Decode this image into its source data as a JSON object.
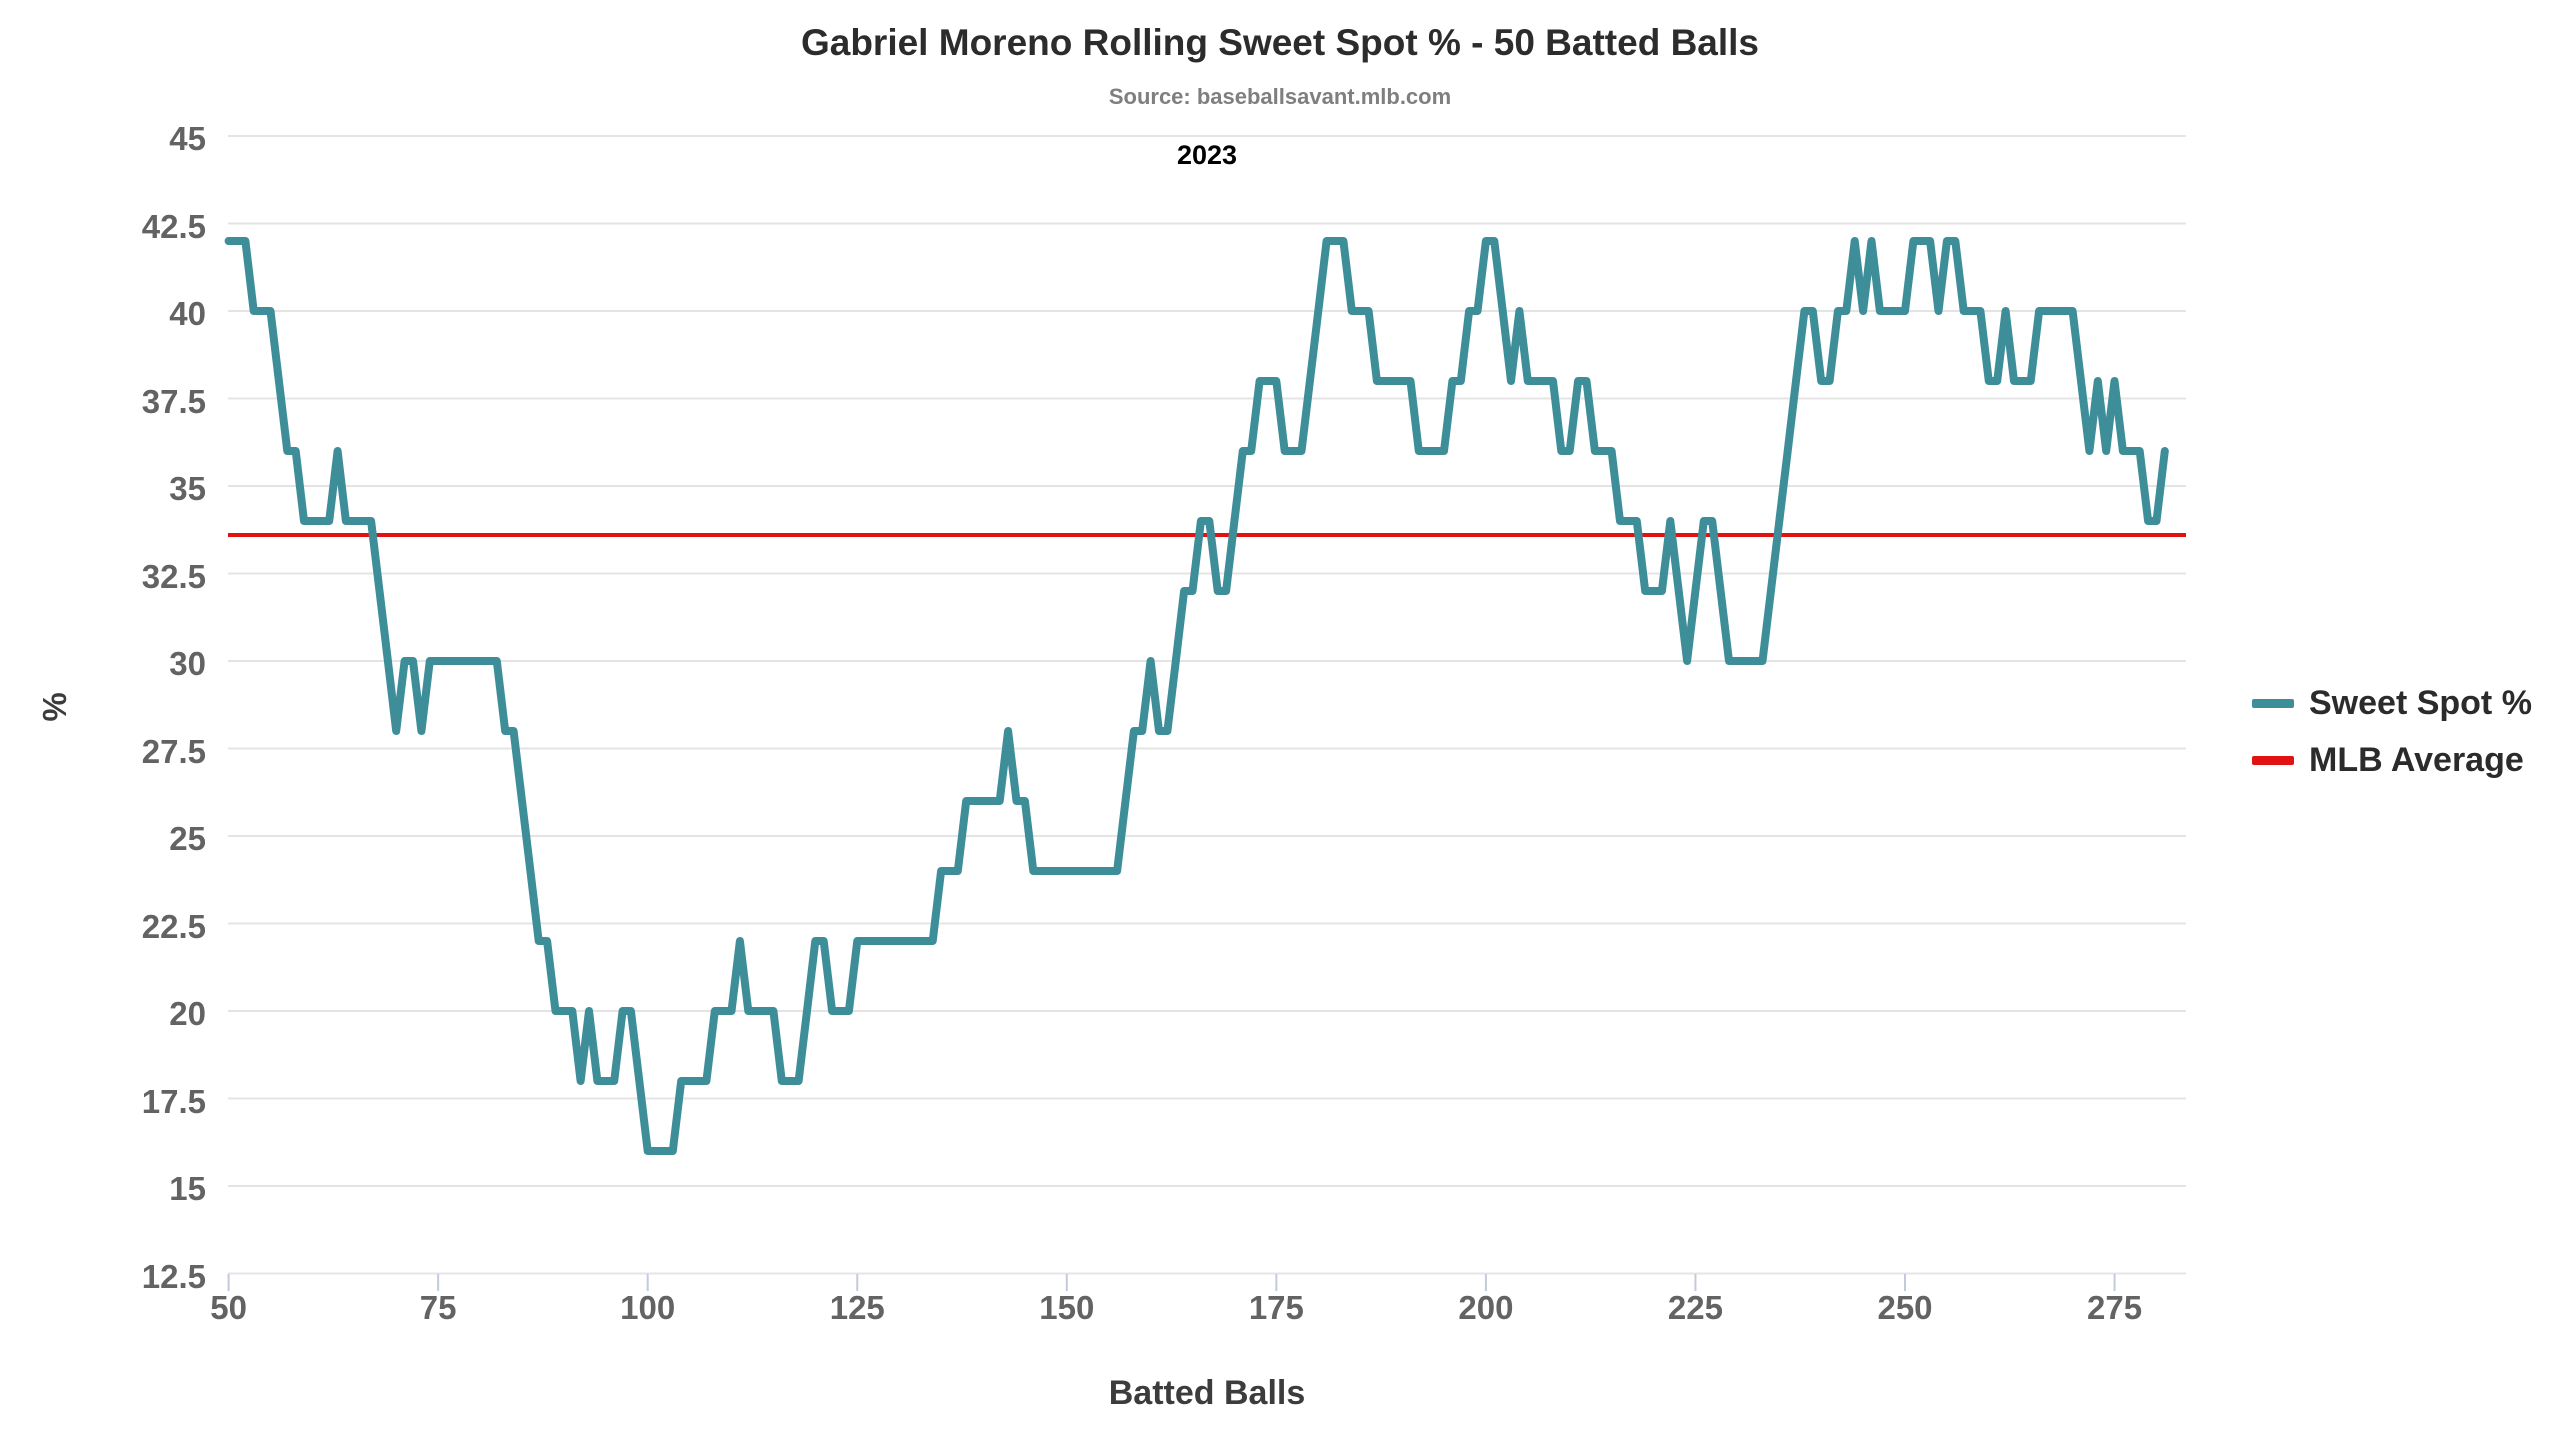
{
  "title": "Gabriel Moreno Rolling Sweet Spot % - 50 Batted Balls",
  "subtitle": "Source: baseballsavant.mlb.com",
  "annotation": "2023",
  "x_axis": {
    "label": "Batted Balls"
  },
  "y_axis": {
    "label": "%"
  },
  "legend": [
    {
      "label": "Sweet Spot %",
      "color": "#3e8e99"
    },
    {
      "label": "MLB Average",
      "color": "#e01212"
    }
  ],
  "colors": {
    "line": "#3e8e99",
    "average": "#e01212",
    "gridline": "#e4e4e4",
    "tick_mark": "#c2cbdd",
    "tick_text": "#636363"
  },
  "chart_data": {
    "type": "line",
    "title": "Gabriel Moreno Rolling Sweet Spot % - 50 Batted Balls",
    "subtitle": "Source: baseballsavant.mlb.com",
    "annotation": "2023",
    "xlabel": "Batted Balls",
    "ylabel": "%",
    "x_ticks": [
      50,
      75,
      100,
      125,
      150,
      175,
      200,
      225,
      250,
      275
    ],
    "y_ticks": [
      12.5,
      15,
      17.5,
      20,
      22.5,
      25,
      27.5,
      30,
      32.5,
      35,
      37.5,
      40,
      42.5,
      45
    ],
    "ylim": [
      12.5,
      45
    ],
    "xlim": [
      50,
      283
    ],
    "grid": "horizontal",
    "legend_position": "right",
    "series": [
      {
        "name": "Sweet Spot %",
        "type": "line",
        "color": "#3e8e99",
        "x_start": 50,
        "x_step": 1,
        "values": [
          42,
          42,
          42,
          40,
          40,
          40,
          38,
          36,
          36,
          34,
          34,
          34,
          34,
          36,
          34,
          34,
          34,
          34,
          32,
          30,
          28,
          30,
          30,
          28,
          30,
          30,
          30,
          30,
          30,
          30,
          30,
          30,
          30,
          28,
          28,
          26,
          24,
          22,
          22,
          20,
          20,
          20,
          18,
          20,
          18,
          18,
          18,
          20,
          20,
          18,
          16,
          16,
          16,
          16,
          18,
          18,
          18,
          18,
          20,
          20,
          20,
          22,
          20,
          20,
          20,
          20,
          18,
          18,
          18,
          20,
          22,
          22,
          20,
          20,
          20,
          22,
          22,
          22,
          22,
          22,
          22,
          22,
          22,
          22,
          22,
          24,
          24,
          24,
          26,
          26,
          26,
          26,
          26,
          28,
          26,
          26,
          24,
          24,
          24,
          24,
          24,
          24,
          24,
          24,
          24,
          24,
          24,
          26,
          28,
          28,
          30,
          28,
          28,
          30,
          32,
          32,
          34,
          34,
          32,
          32,
          34,
          36,
          36,
          38,
          38,
          38,
          36,
          36,
          36,
          38,
          40,
          42,
          42,
          42,
          40,
          40,
          40,
          38,
          38,
          38,
          38,
          38,
          36,
          36,
          36,
          36,
          38,
          38,
          40,
          40,
          42,
          42,
          40,
          38,
          40,
          38,
          38,
          38,
          38,
          36,
          36,
          38,
          38,
          36,
          36,
          36,
          34,
          34,
          34,
          32,
          32,
          32,
          34,
          32,
          30,
          32,
          34,
          34,
          32,
          30,
          30,
          30,
          30,
          30,
          32,
          34,
          36,
          38,
          40,
          40,
          38,
          38,
          40,
          40,
          42,
          40,
          42,
          40,
          40,
          40,
          40,
          42,
          42,
          42,
          40,
          42,
          42,
          40,
          40,
          40,
          38,
          38,
          40,
          38,
          38,
          38,
          40,
          40,
          40,
          40,
          40,
          38,
          36,
          38,
          36,
          38,
          36,
          36,
          36,
          34,
          34,
          36
        ]
      },
      {
        "name": "MLB Average",
        "type": "hline",
        "color": "#e01212",
        "value": 33.6
      }
    ]
  }
}
